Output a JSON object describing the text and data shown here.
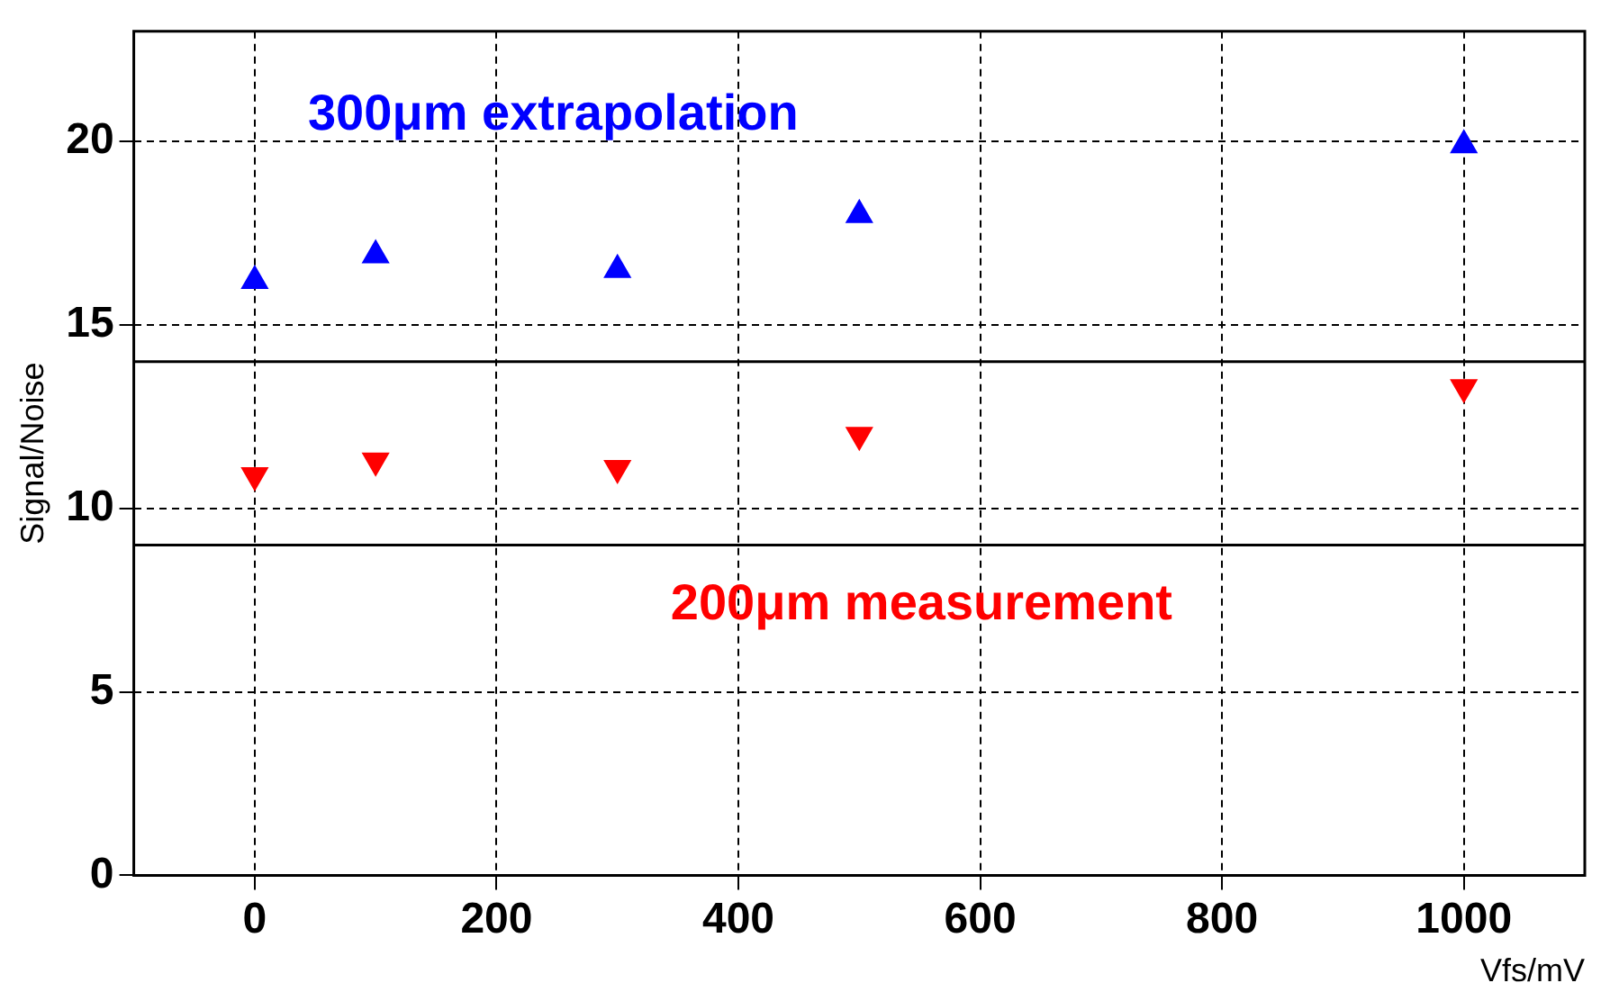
{
  "chart_data": {
    "type": "scatter",
    "xlabel": "Vfs/mV",
    "ylabel": "Signal/Noise",
    "xlim": [
      -100,
      1100
    ],
    "xticks": [
      0,
      200,
      400,
      600,
      800,
      1000
    ],
    "ylim": [
      0,
      23
    ],
    "yticks": [
      0,
      5,
      10,
      15,
      20
    ],
    "grid": true,
    "legend": false,
    "marker": "triangle",
    "series": [
      {
        "name": "300μm extrapolation",
        "color": "#0000ff",
        "x": [
          0,
          100,
          300,
          500,
          1000
        ],
        "values": [
          16.2,
          16.9,
          16.5,
          18.0,
          19.9
        ]
      },
      {
        "name": "200μm measurement",
        "color": "#ff0000",
        "x": [
          0,
          100,
          300,
          500,
          1000
        ],
        "values": [
          10.9,
          11.3,
          11.1,
          12.0,
          13.3
        ]
      }
    ],
    "ref_lines": [
      {
        "axis": "y",
        "value": 14,
        "color": "#000000",
        "line_style": "solid"
      },
      {
        "axis": "y",
        "value": 9,
        "color": "#000000",
        "line_style": "solid"
      }
    ]
  }
}
